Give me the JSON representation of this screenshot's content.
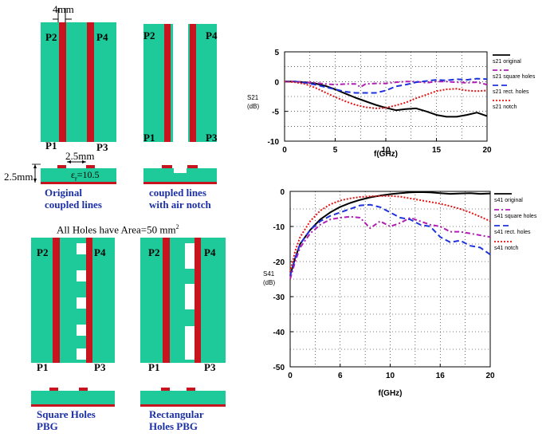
{
  "top_left": {
    "dim_4mm": "4mm",
    "p1": "P1",
    "p2": "P2",
    "p3": "P3",
    "p4": "P4",
    "dim_2_5mm_w": "2.5mm",
    "dim_2_5mm_h": "2.5mm",
    "epsilon_label": "ε",
    "epsilon_sub": "r",
    "epsilon_value": "=10.5",
    "caption_line1": "Original",
    "caption_line2": "coupled lines"
  },
  "top_right": {
    "p1": "P1",
    "p2": "P2",
    "p3": "P3",
    "p4": "P4",
    "caption_line1": "coupled lines",
    "caption_line2": "with air notch"
  },
  "holes_note": {
    "text": "All Holes have Area=50 mm",
    "sup": "2"
  },
  "bottom_left": {
    "p1": "P1",
    "p2": "P2",
    "p3": "P3",
    "p4": "P4",
    "caption_line1": "Square Holes",
    "caption_line2": "PBG"
  },
  "bottom_right": {
    "p1": "P1",
    "p2": "P2",
    "p3": "P3",
    "p4": "P4",
    "caption_line1": "Rectangular",
    "caption_line2": "Holes PBG"
  },
  "colors": {
    "substrate": "#1ec99a",
    "strip": "#c8141e",
    "caption": "#1b2fa6",
    "black_series": "#000000",
    "magenta_series": "#b01eb4",
    "blue_series": "#1e32dc",
    "red_series": "#e61414"
  },
  "chart_data": [
    {
      "type": "line",
      "ylabel": "S21",
      "yunit": "(dB)",
      "xlabel": "f(GHz)",
      "xlim": [
        0,
        20
      ],
      "ylim": [
        -10,
        5
      ],
      "xticks": [
        "0",
        "5",
        "10",
        "15",
        "20"
      ],
      "yticks": [
        "5",
        "0",
        "-5",
        "-10"
      ],
      "grid": true,
      "legend_position": "right",
      "series": [
        {
          "name": "s21 original",
          "color": "#000000",
          "dash": "solid",
          "x": [
            0,
            1,
            2,
            3,
            4,
            5,
            6,
            7,
            8,
            9,
            10,
            11,
            12,
            13,
            14,
            15,
            16,
            17,
            18,
            19,
            20
          ],
          "y": [
            0,
            0,
            -0.1,
            -0.3,
            -0.7,
            -1.3,
            -2.0,
            -2.7,
            -3.3,
            -3.9,
            -4.4,
            -4.8,
            -4.6,
            -4.5,
            -5.0,
            -5.6,
            -5.9,
            -5.9,
            -5.6,
            -5.2,
            -5.8
          ]
        },
        {
          "name": "s21 square holes",
          "color": "#b01eb4",
          "dash": "dashdot",
          "x": [
            0,
            1,
            2,
            3,
            4,
            5,
            6,
            7,
            7.5,
            8,
            9,
            10,
            11,
            12,
            13,
            14,
            15,
            16,
            17,
            18,
            19,
            20
          ],
          "y": [
            0,
            0,
            -0.1,
            -0.2,
            -0.4,
            -0.5,
            -0.4,
            -0.4,
            -0.9,
            -0.4,
            -0.3,
            -0.3,
            -0.1,
            0,
            0,
            -0.2,
            0,
            0,
            -0.1,
            -0.2,
            -0.1,
            -0.5
          ]
        },
        {
          "name": "s21 rect. holes",
          "color": "#1e32dc",
          "dash": "dashed",
          "x": [
            0,
            1,
            2,
            3,
            4,
            5,
            6,
            7,
            8,
            9,
            10,
            11,
            12,
            13,
            14,
            15,
            16,
            17,
            18,
            19,
            20
          ],
          "y": [
            0,
            0,
            -0.2,
            -0.5,
            -0.9,
            -1.3,
            -1.7,
            -1.9,
            -1.9,
            -1.9,
            -1.5,
            -0.8,
            -0.5,
            -0.1,
            0.1,
            0.3,
            0.2,
            0.4,
            0.3,
            0.5,
            0.4
          ]
        },
        {
          "name": "s21 notch",
          "color": "#e61414",
          "dash": "dotted",
          "x": [
            0,
            1,
            2,
            3,
            4,
            5,
            6,
            7,
            8,
            9,
            10,
            11,
            12,
            13,
            14,
            15,
            16,
            17,
            18,
            19,
            20
          ],
          "y": [
            0,
            -0.1,
            -0.4,
            -1.0,
            -1.8,
            -2.6,
            -3.3,
            -3.9,
            -4.3,
            -4.5,
            -4.4,
            -4.0,
            -3.5,
            -2.8,
            -2.2,
            -1.6,
            -1.3,
            -1.2,
            -1.5,
            -1.6,
            -1.5
          ]
        }
      ]
    },
    {
      "type": "line",
      "ylabel": "S41",
      "yunit": "(dB)",
      "xlabel": "f(GHz)",
      "xlim": [
        0,
        20
      ],
      "ylim": [
        -50,
        0
      ],
      "xticks": [
        "0",
        "6",
        "10",
        "16",
        "20"
      ],
      "yticks": [
        "0",
        "-10",
        "-20",
        "-30",
        "-40",
        "-50"
      ],
      "grid": true,
      "legend_position": "right",
      "series": [
        {
          "name": "s41 original",
          "color": "#000000",
          "dash": "solid",
          "x": [
            0,
            0.5,
            1,
            2,
            3,
            4,
            5,
            6,
            7,
            8,
            9,
            10,
            11,
            12,
            13,
            14,
            15,
            16,
            17,
            18,
            19,
            20
          ],
          "y": [
            -24,
            -19,
            -15,
            -11,
            -8,
            -6,
            -4.4,
            -3.3,
            -2.4,
            -1.7,
            -1.2,
            -0.8,
            -0.5,
            -0.3,
            -0.2,
            -0.3,
            -0.5,
            -0.7,
            -0.6,
            -0.5,
            -0.7,
            -0.6
          ]
        },
        {
          "name": "s41 square holes",
          "color": "#b01eb4",
          "dash": "dashdot",
          "x": [
            0,
            0.5,
            1,
            2,
            3,
            4,
            5,
            6,
            7,
            8,
            9,
            10,
            11,
            12,
            13,
            14,
            15,
            16,
            17,
            18,
            19,
            20
          ],
          "y": [
            -25,
            -20,
            -16,
            -12,
            -9.5,
            -8,
            -7.5,
            -7.2,
            -7.5,
            -10.5,
            -8.5,
            -10,
            -9,
            -7.5,
            -8.5,
            -9.5,
            -10,
            -11.5,
            -11.5,
            -12,
            -12.5,
            -13
          ]
        },
        {
          "name": "s41 rect. holes",
          "color": "#1e32dc",
          "dash": "dashed",
          "x": [
            0,
            0.5,
            1,
            2,
            3,
            4,
            5,
            6,
            7,
            8,
            9,
            10,
            11,
            12,
            13,
            14,
            15,
            16,
            17,
            18,
            19,
            20
          ],
          "y": [
            -24,
            -19,
            -15,
            -11,
            -8.5,
            -7,
            -6,
            -5,
            -4,
            -3.8,
            -4.5,
            -6,
            -7.5,
            -8,
            -9.5,
            -10,
            -13,
            -14.5,
            -14,
            -15.5,
            -16,
            -18
          ]
        },
        {
          "name": "s41 notch",
          "color": "#e61414",
          "dash": "dotted",
          "x": [
            0,
            0.5,
            1,
            2,
            3,
            4,
            5,
            6,
            7,
            8,
            9,
            10,
            11,
            12,
            13,
            14,
            15,
            16,
            17,
            18,
            19,
            20
          ],
          "y": [
            -23,
            -17,
            -13,
            -8.5,
            -5.5,
            -3.7,
            -2.6,
            -2,
            -1.6,
            -1.4,
            -1.3,
            -1.3,
            -1.5,
            -2,
            -2.5,
            -3,
            -3.5,
            -4.2,
            -5,
            -6,
            -7.2,
            -8.5
          ]
        }
      ]
    }
  ]
}
